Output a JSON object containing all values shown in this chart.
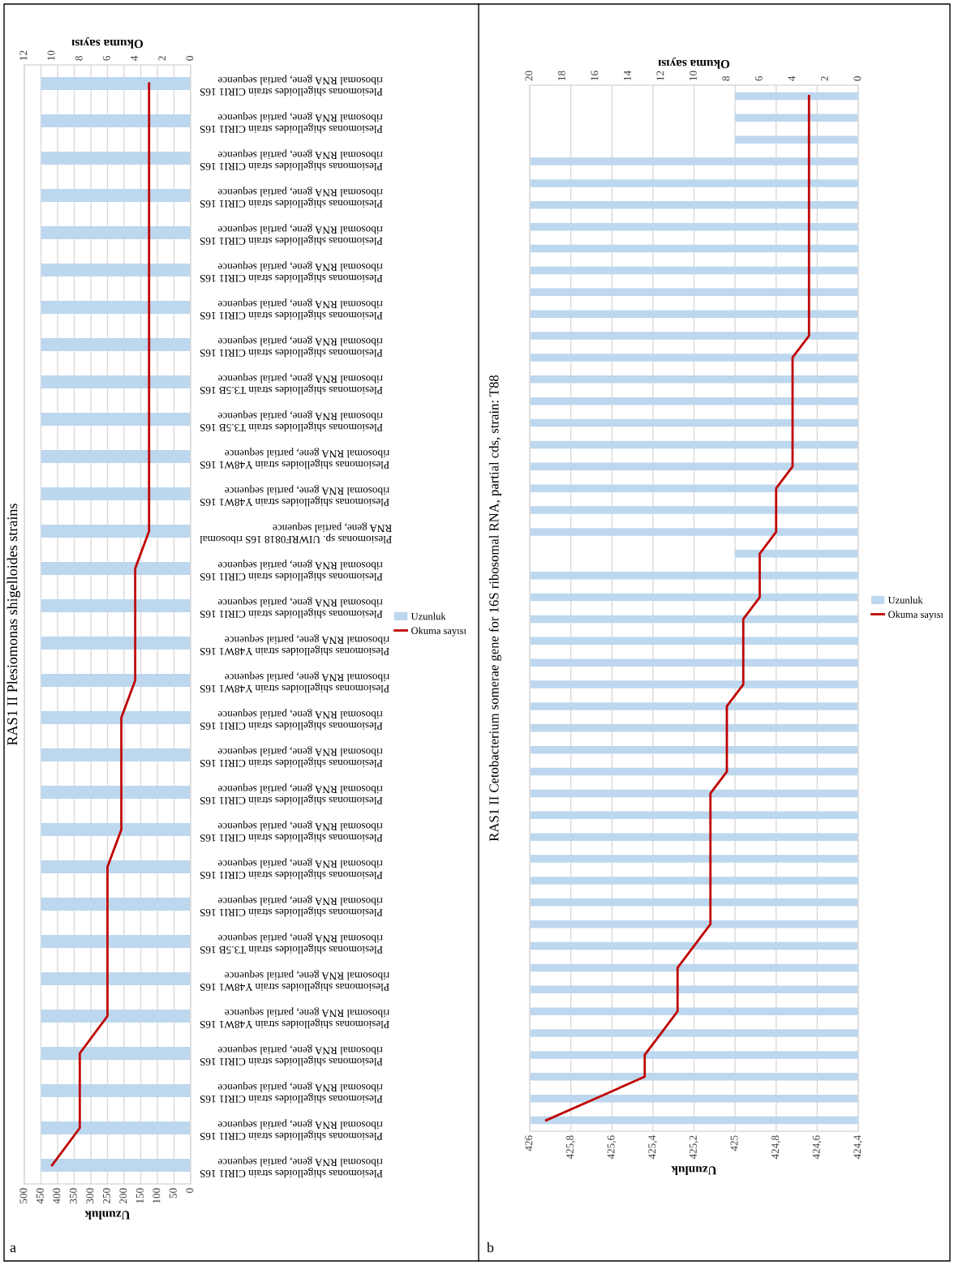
{
  "chart_data": [
    {
      "type": "bar",
      "orientation": "horizontal",
      "title": "RAS1 II Plesiomonas shigelloides strains",
      "xlabel": "Uzunluk",
      "x2label": "Okuma sayısı",
      "categories": [
        "Plesiomonas shigelloides strain CIRI1 16S\nribosomal RNA gene, partial sequence",
        "Plesiomonas shigelloides strain CIRI1 16S\nribosomal RNA gene, partial sequence",
        "Plesiomonas shigelloides strain CIRI1 16S\nribosomal RNA gene, partial sequence",
        "Plesiomonas shigelloides strain CIRI1 16S\nribosomal RNA gene, partial sequence",
        "Plesiomonas shigelloides strain CIRI1 16S\nribosomal RNA gene, partial sequence",
        "Plesiomonas shigelloides strain CIRI1 16S\nribosomal RNA gene, partial sequence",
        "Plesiomonas shigelloides strain CIRI1 16S\nribosomal RNA gene, partial sequence",
        "Plesiomonas shigelloides strain CIRI1 16S\nribosomal RNA gene, partial sequence",
        "Plesiomonas shigelloides strain T3.5B 16S\nribosomal RNA gene, partial sequence",
        "Plesiomonas shigelloides strain T3.5B 16S\nribosomal RNA gene, partial sequence",
        "Plesiomonas shigelloides strain Y48W1 16S\nribosomal RNA gene, partial sequence",
        "Plesiomonas shigelloides strain Y48W1 16S\nribosomal RNA gene, partial sequence",
        "Plesiomonas sp. UIWRF0818 16S ribosomal\nRNA gene, partial sequence",
        "Plesiomonas shigelloides strain CIRI1 16S\nribosomal RNA gene, partial sequence",
        "Plesiomonas shigelloides strain CIRI1 16S\nribosomal RNA gene, partial sequence",
        "Plesiomonas shigelloides strain Y48W1 16S\nribosomal RNA gene, partial sequence",
        "Plesiomonas shigelloides strain Y48W1 16S\nribosomal RNA gene, partial sequence",
        "Plesiomonas shigelloides strain CIRI1 16S\nribosomal RNA gene, partial sequence",
        "Plesiomonas shigelloides strain CIRI1 16S\nribosomal RNA gene, partial sequence",
        "Plesiomonas shigelloides strain CIRI1 16S\nribosomal RNA gene, partial sequence",
        "Plesiomonas shigelloides strain CIRI1 16S\nribosomal RNA gene, partial sequence",
        "Plesiomonas shigelloides strain CIRI1 16S\nribosomal RNA gene, partial sequence",
        "Plesiomonas shigelloides strain CIRI1 16S\nribosomal RNA gene, partial sequence",
        "Plesiomonas shigelloides strain T3.5B 16S\nribosomal RNA gene, partial sequence",
        "Plesiomonas shigelloides strain Y48W1 16S\nribosomal RNA gene, partial sequence",
        "Plesiomonas shigelloides strain Y48W1 16S\nribosomal RNA gene, partial sequence",
        "Plesiomonas shigelloides strain CIRI1 16S\nribosomal RNA gene, partial sequence",
        "Plesiomonas shigelloides strain CIRI1 16S\nribosomal RNA gene, partial sequence",
        "Plesiomonas shigelloides strain CIRI1 16S\nribosomal RNA gene, partial sequence",
        "Plesiomonas shigelloides strain CIRI1 16S\nribosomal RNA gene, partial sequence"
      ],
      "series": [
        {
          "name": "Uzunluk",
          "color": "#bdd7ee",
          "values": [
            450,
            450,
            450,
            450,
            450,
            450,
            450,
            450,
            450,
            450,
            450,
            450,
            450,
            450,
            450,
            450,
            450,
            450,
            450,
            450,
            450,
            450,
            450,
            450,
            450,
            450,
            450,
            450,
            450,
            450
          ]
        },
        {
          "name": "Okuma sayısı",
          "type": "line",
          "axis": "x2",
          "color": "#c00000",
          "values": [
            3,
            3,
            3,
            3,
            3,
            3,
            3,
            3,
            3,
            3,
            3,
            3,
            3,
            4,
            4,
            4,
            4,
            5,
            5,
            5,
            5,
            6,
            6,
            6,
            6,
            6,
            8,
            8,
            8,
            10
          ]
        }
      ],
      "xlim": [
        500,
        0
      ],
      "xticks": [
        0,
        50,
        100,
        150,
        200,
        250,
        300,
        350,
        400,
        450,
        500
      ],
      "x2lim": [
        12,
        0
      ],
      "x2ticks": [
        0,
        2,
        4,
        6,
        8,
        10,
        12
      ],
      "grid": "x",
      "legend": "right",
      "marker": "none",
      "annotations": [
        "a"
      ]
    },
    {
      "type": "bar",
      "orientation": "horizontal",
      "title": "RAS1 II Cetobacterium somerae gene for 16S ribosomal RNA, partial cds, strain: T88",
      "xlabel": "Uzunluk",
      "x2label": "Okuma sayısı",
      "categories": [
        null,
        null,
        null,
        null,
        null,
        null,
        null,
        null,
        null,
        null,
        null,
        null,
        null,
        null,
        null,
        null,
        null,
        null,
        null,
        null,
        null,
        null,
        null,
        null,
        null,
        null,
        null,
        null,
        null,
        null,
        null,
        null,
        null,
        null,
        null,
        null,
        null,
        null,
        null,
        null,
        null,
        null,
        null,
        null,
        null,
        null,
        null,
        null
      ],
      "series": [
        {
          "name": "Uzunluk",
          "color": "#bdd7ee",
          "values": [
            425,
            425,
            425,
            426,
            426,
            426,
            426,
            426,
            426,
            426,
            426,
            426,
            426,
            426,
            426,
            426,
            426,
            426,
            426,
            426,
            426,
            425,
            426,
            426,
            426,
            426,
            426,
            426,
            426,
            426,
            426,
            426,
            426,
            426,
            426,
            426,
            426,
            426,
            426,
            426,
            426,
            426,
            426,
            426,
            426,
            426,
            426,
            426
          ]
        },
        {
          "name": "Okuma sayısı",
          "type": "line",
          "axis": "x2",
          "color": "#c00000",
          "values": [
            3,
            3,
            3,
            3,
            3,
            3,
            3,
            3,
            3,
            3,
            3,
            3,
            4,
            4,
            4,
            4,
            4,
            4,
            5,
            5,
            5,
            6,
            6,
            6,
            7,
            7,
            7,
            7,
            8,
            8,
            8,
            8,
            9,
            9,
            9,
            9,
            9,
            9,
            9,
            10,
            11,
            11,
            11,
            12,
            13,
            13,
            16,
            19
          ]
        }
      ],
      "xlim": [
        426,
        424.4
      ],
      "xticks": [
        {
          "value": 426,
          "label": "426"
        },
        {
          "value": 425.8,
          "label": "425,8"
        },
        {
          "value": 425.6,
          "label": "425,6"
        },
        {
          "value": 425.4,
          "label": "425,4"
        },
        {
          "value": 425.2,
          "label": "425,2"
        },
        {
          "value": 425,
          "label": "425"
        },
        {
          "value": 424.8,
          "label": "424,8"
        },
        {
          "value": 424.6,
          "label": "424,6"
        },
        {
          "value": 424.4,
          "label": "424,4"
        }
      ],
      "x2lim": [
        20,
        0
      ],
      "x2ticks": [
        0,
        2,
        4,
        6,
        8,
        10,
        12,
        14,
        16,
        18,
        20
      ],
      "grid": "x",
      "legend": "right",
      "marker": "none",
      "annotations": [
        "b"
      ]
    }
  ]
}
